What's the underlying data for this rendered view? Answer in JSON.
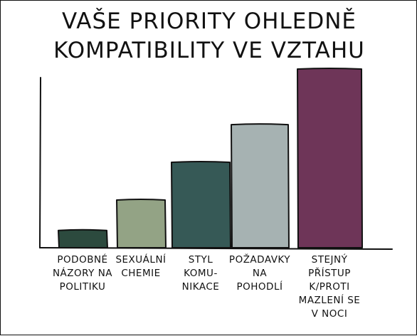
{
  "chart_data": {
    "type": "bar",
    "title_lines": [
      "VAŠE PRIORITY OHLEDNĚ",
      "KOMPATIBILITY VE VZTAHU"
    ],
    "xlabel": "",
    "ylabel": "",
    "ylim": [
      0,
      100
    ],
    "grid": false,
    "legend": "none",
    "categories": [
      [
        "PODOBNÉ",
        "NÁZORY NA",
        "POLITIKU"
      ],
      [
        "SEXUÁLNÍ",
        "CHEMIE"
      ],
      [
        "STYL",
        "KOMU-",
        "NIKACE"
      ],
      [
        "POŽADAVKY",
        "NA",
        "POHODLÍ"
      ],
      [
        "STEJNÝ",
        "PŘÍSTUP",
        "K/PROTI",
        "MAZLENÍ SE",
        "V NOCI"
      ]
    ],
    "values": [
      10,
      27,
      48,
      69,
      100
    ],
    "colors": [
      "#2c4a3e",
      "#93a385",
      "#365956",
      "#a6b2b2",
      "#6e3558"
    ]
  }
}
